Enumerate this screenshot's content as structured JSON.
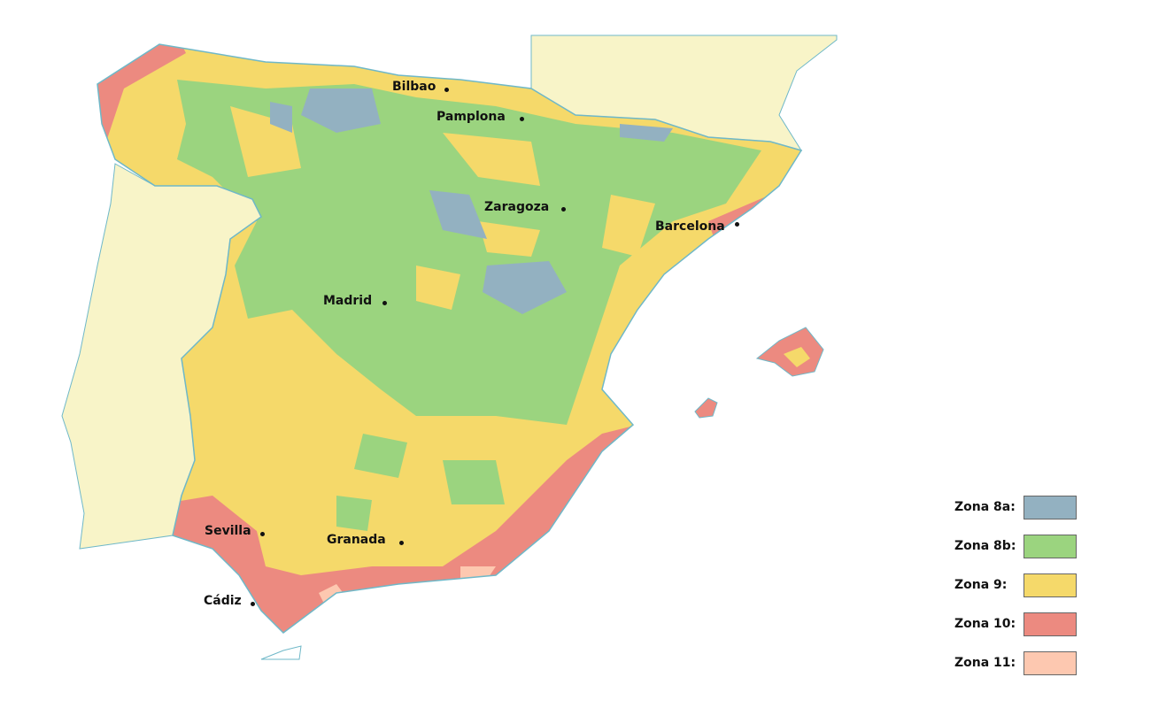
{
  "colors": {
    "sea": "#ffffff",
    "neighbor": "#f8f4c8",
    "coast": "#6fb8c8",
    "zona_8a": "#93b1c1",
    "zona_8b": "#9bd47f",
    "zona_9": "#f5d96a",
    "zona_10": "#ec8a80",
    "zona_11": "#fdc8b0"
  },
  "cities": [
    {
      "name": "Bilbao"
    },
    {
      "name": "Pamplona"
    },
    {
      "name": "Zaragoza"
    },
    {
      "name": "Barcelona"
    },
    {
      "name": "Madrid"
    },
    {
      "name": "Sevilla"
    },
    {
      "name": "Granada"
    },
    {
      "name": "Cádiz"
    }
  ],
  "legend": [
    {
      "label": "Zona 8a:",
      "color": "#93b1c1"
    },
    {
      "label": "Zona 8b:",
      "color": "#9bd47f"
    },
    {
      "label": "Zona 9:",
      "color": "#f5d96a"
    },
    {
      "label": "Zona 10:",
      "color": "#ec8a80"
    },
    {
      "label": "Zona 11:",
      "color": "#fdc8b0"
    }
  ]
}
